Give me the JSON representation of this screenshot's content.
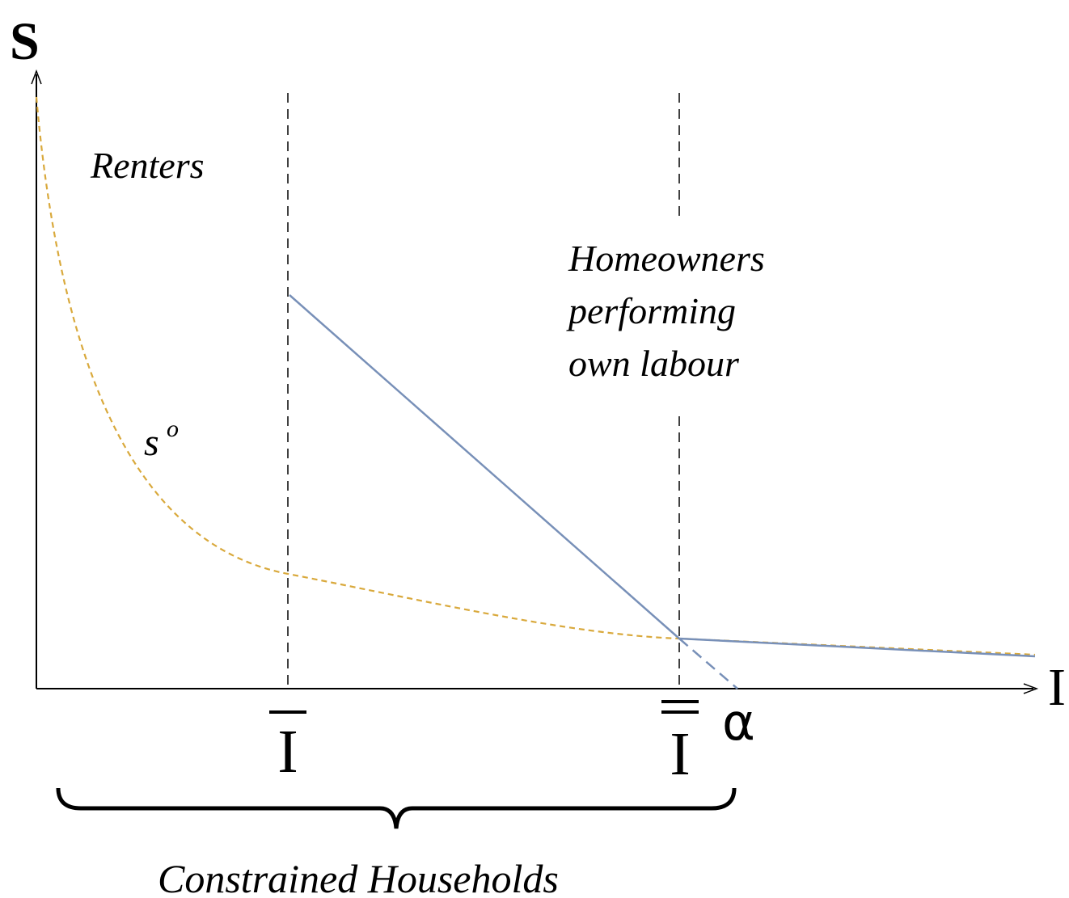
{
  "axes": {
    "y_label": "S",
    "x_label": "I"
  },
  "regions": {
    "renters": "Renters",
    "homeowners": [
      "Homeowners",
      "performing",
      "own labour"
    ]
  },
  "curve_label": {
    "base": "s",
    "superscript": "o"
  },
  "markers": {
    "i_bar": "I",
    "i_double_bar": "I",
    "alpha": "α"
  },
  "brace_label": "Constrained Households"
}
